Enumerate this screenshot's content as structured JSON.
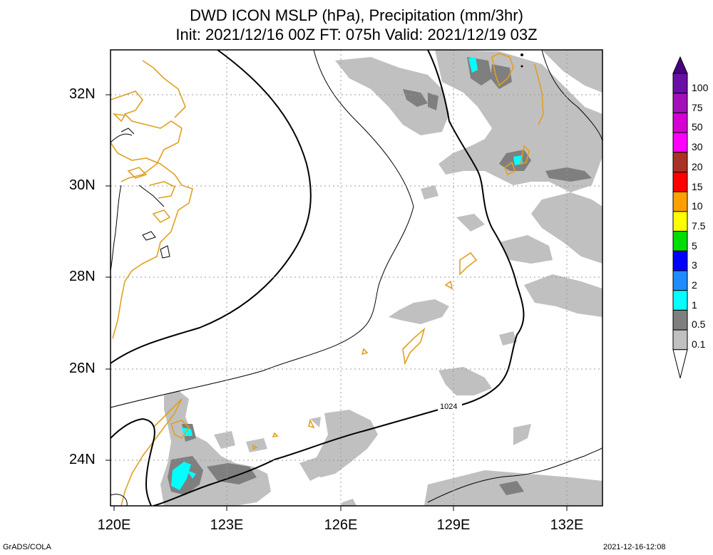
{
  "title": {
    "line1": "DWD ICON MSLP (hPa), Precipitation (mm/3hr)",
    "line2": "Init: 2021/12/16 00Z  FT: 075h  Valid: 2021/12/19 03Z"
  },
  "axes": {
    "lat_labels": [
      "32N",
      "30N",
      "28N",
      "26N",
      "24N"
    ],
    "lon_labels": [
      "120E",
      "123E",
      "126E",
      "129E",
      "132E"
    ]
  },
  "contour_label": "1024",
  "colorbar": {
    "labels": [
      "100",
      "75",
      "50",
      "30",
      "20",
      "15",
      "10",
      "7.5",
      "5",
      "3",
      "2",
      "1",
      "0.5",
      "0.1"
    ],
    "colors": [
      "#6a0fa8",
      "#a30fb8",
      "#d400d4",
      "#ff00ff",
      "#aa3225",
      "#ff0000",
      "#ffa000",
      "#ffff00",
      "#00dd00",
      "#0000ff",
      "#1e8cff",
      "#00ffff",
      "#7f7f7f",
      "#c0c0c0"
    ]
  },
  "colors": {
    "coastline": "#e0a020",
    "light_precip": "#c0c0c0",
    "dark_precip": "#7f7f7f",
    "heavy_precip": "#00ffff"
  },
  "footer": {
    "left": "GrADS/COLA",
    "right": "2021-12-16-12:08"
  }
}
